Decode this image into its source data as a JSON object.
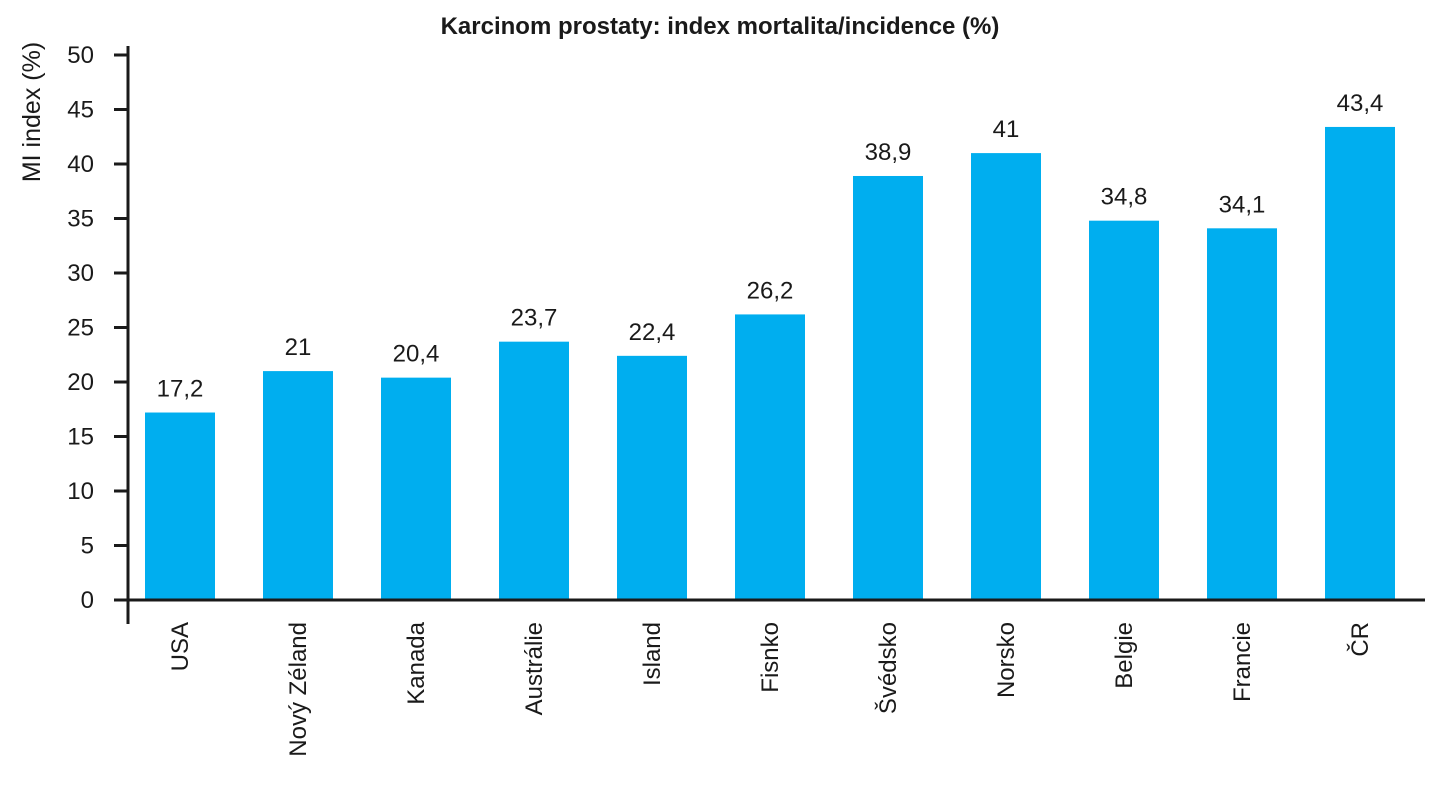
{
  "chart_data": {
    "type": "bar",
    "title": "Karcinom prostaty: index mortalita/incidence (%)",
    "xlabel": "",
    "ylabel": "MI index (%)",
    "ylim": [
      0,
      50
    ],
    "yticks": [
      0,
      5,
      10,
      15,
      20,
      25,
      30,
      35,
      40,
      45,
      50
    ],
    "grid": false,
    "categories": [
      "USA",
      "Nový Zéland",
      "Kanada",
      "Austrálie",
      "Island",
      "Fisnko",
      "Švédsko",
      "Norsko",
      "Belgie",
      "Francie",
      "ČR"
    ],
    "values": [
      17.2,
      21,
      20.4,
      23.7,
      22.4,
      26.2,
      38.9,
      41,
      34.8,
      34.1,
      43.4
    ],
    "value_labels": [
      "17,2",
      "21",
      "20,4",
      "23,7",
      "22,4",
      "26,2",
      "38,9",
      "41",
      "34,8",
      "34,1",
      "43,4"
    ],
    "bar_color": "#00aeef",
    "axis_color": "#1a1a1a"
  }
}
